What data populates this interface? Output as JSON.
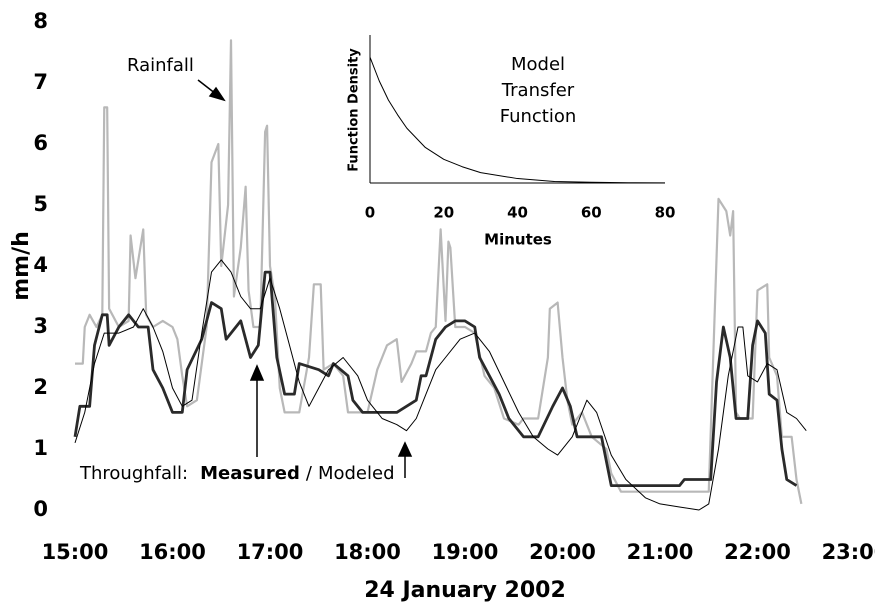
{
  "chart_data": [
    {
      "type": "line",
      "xlabel": "24 January 2002",
      "ylabel": "mm/h",
      "annotation": "Throughfall:",
      "separator": "/",
      "xlim": [
        15,
        23
      ],
      "ylim": [
        0,
        8
      ],
      "xticks": [
        {
          "value": 15,
          "label": "15:00"
        },
        {
          "value": 16,
          "label": "16:00"
        },
        {
          "value": 17,
          "label": "17:00"
        },
        {
          "value": 18,
          "label": "18:00"
        },
        {
          "value": 19,
          "label": "19:00"
        },
        {
          "value": 20,
          "label": "20:00"
        },
        {
          "value": 21,
          "label": "21:00"
        },
        {
          "value": 22,
          "label": "22:00"
        },
        {
          "value": 23,
          "label": "23:00"
        }
      ],
      "yticks": [
        0,
        1,
        2,
        3,
        4,
        5,
        6,
        7,
        8
      ],
      "axis_lines": false,
      "series": [
        {
          "name": "Rainfall",
          "color": "#b8b8b8",
          "width": 2.2,
          "x": [
            15.0,
            15.08,
            15.1,
            15.15,
            15.22,
            15.28,
            15.3,
            15.33,
            15.35,
            15.45,
            15.55,
            15.57,
            15.62,
            15.68,
            15.7,
            15.73,
            15.8,
            15.9,
            16.0,
            16.05,
            16.1,
            16.15,
            16.25,
            16.35,
            16.4,
            16.47,
            16.5,
            16.57,
            16.6,
            16.63,
            16.7,
            16.75,
            16.78,
            16.83,
            16.9,
            16.95,
            16.97,
            17.0,
            17.05,
            17.1,
            17.15,
            17.3,
            17.4,
            17.45,
            17.52,
            17.55,
            17.65,
            17.75,
            17.8,
            18.0,
            18.1,
            18.15,
            18.2,
            18.3,
            18.35,
            18.45,
            18.5,
            18.6,
            18.65,
            18.7,
            18.75,
            18.8,
            18.83,
            18.85,
            18.9,
            19.0,
            19.1,
            19.2,
            19.3,
            19.4,
            19.55,
            19.6,
            19.75,
            19.85,
            19.87,
            19.95,
            20.0,
            20.05,
            20.1,
            20.2,
            20.3,
            20.45,
            20.5,
            20.6,
            21.0,
            21.5,
            21.6,
            21.68,
            21.72,
            21.75,
            21.78,
            21.82,
            21.95,
            22.0,
            22.1,
            22.12,
            22.2,
            22.25,
            22.35,
            22.4,
            22.45
          ],
          "values": [
            2.4,
            2.4,
            3.0,
            3.2,
            3.0,
            3.2,
            6.6,
            6.6,
            3.3,
            3.0,
            3.1,
            4.5,
            3.8,
            4.4,
            4.6,
            3.2,
            3.0,
            3.1,
            3.0,
            2.8,
            2.2,
            1.7,
            1.8,
            3.0,
            5.7,
            6.0,
            4.0,
            5.0,
            7.7,
            3.5,
            4.3,
            5.3,
            3.6,
            3.0,
            3.0,
            6.2,
            6.3,
            4.0,
            3.5,
            2.0,
            1.6,
            1.6,
            2.5,
            3.7,
            3.7,
            2.3,
            2.4,
            2.2,
            1.6,
            1.6,
            2.3,
            2.5,
            2.7,
            2.8,
            2.1,
            2.4,
            2.6,
            2.6,
            2.9,
            3.0,
            4.6,
            3.1,
            4.4,
            4.3,
            3.0,
            3.0,
            2.9,
            2.2,
            2.0,
            1.5,
            1.4,
            1.5,
            1.5,
            2.5,
            3.3,
            3.4,
            2.5,
            1.8,
            1.4,
            1.6,
            1.2,
            1.0,
            0.6,
            0.3,
            0.3,
            0.3,
            5.1,
            4.9,
            4.5,
            4.9,
            1.6,
            1.5,
            1.5,
            3.6,
            3.7,
            2.5,
            2.2,
            1.2,
            1.2,
            0.5,
            0.1
          ]
        },
        {
          "name": "Measured",
          "color": "#2a2a2a",
          "width": 2.8,
          "x": [
            15.0,
            15.05,
            15.15,
            15.2,
            15.28,
            15.33,
            15.35,
            15.45,
            15.55,
            15.65,
            15.75,
            15.8,
            15.9,
            16.0,
            16.1,
            16.15,
            16.3,
            16.4,
            16.5,
            16.55,
            16.7,
            16.8,
            16.88,
            16.95,
            17.0,
            17.07,
            17.15,
            17.25,
            17.3,
            17.5,
            17.6,
            17.65,
            17.8,
            17.85,
            17.95,
            18.1,
            18.3,
            18.4,
            18.5,
            18.55,
            18.6,
            18.65,
            18.7,
            18.8,
            18.9,
            19.0,
            19.1,
            19.15,
            19.25,
            19.35,
            19.45,
            19.6,
            19.75,
            19.9,
            20.0,
            20.08,
            20.15,
            20.3,
            20.4,
            20.45,
            20.5,
            21.0,
            21.2,
            21.25,
            21.4,
            21.52,
            21.58,
            21.65,
            21.72,
            21.78,
            21.9,
            21.95,
            22.0,
            22.08,
            22.12,
            22.2,
            22.25,
            22.3,
            22.4
          ],
          "values": [
            1.2,
            1.7,
            1.7,
            2.7,
            3.2,
            3.2,
            2.7,
            3.0,
            3.2,
            3.0,
            3.0,
            2.3,
            2.0,
            1.6,
            1.6,
            2.3,
            2.8,
            3.4,
            3.3,
            2.8,
            3.1,
            2.5,
            2.7,
            3.9,
            3.9,
            2.5,
            1.9,
            1.9,
            2.4,
            2.3,
            2.2,
            2.4,
            2.2,
            1.8,
            1.6,
            1.6,
            1.6,
            1.7,
            1.8,
            2.2,
            2.2,
            2.5,
            2.8,
            3.0,
            3.1,
            3.1,
            3.0,
            2.5,
            2.2,
            1.9,
            1.5,
            1.2,
            1.2,
            1.7,
            2.0,
            1.7,
            1.2,
            1.2,
            1.2,
            0.8,
            0.4,
            0.4,
            0.4,
            0.5,
            0.5,
            0.5,
            2.1,
            3.0,
            2.5,
            1.5,
            1.5,
            2.7,
            3.1,
            2.9,
            1.9,
            1.8,
            1.0,
            0.5,
            0.4
          ]
        },
        {
          "name": "Modeled",
          "color": "#000000",
          "width": 1,
          "x": [
            15.0,
            15.1,
            15.2,
            15.3,
            15.45,
            15.6,
            15.7,
            15.8,
            15.9,
            16.0,
            16.1,
            16.2,
            16.3,
            16.4,
            16.5,
            16.6,
            16.7,
            16.8,
            16.9,
            17.0,
            17.1,
            17.2,
            17.3,
            17.4,
            17.5,
            17.6,
            17.75,
            17.9,
            18.0,
            18.15,
            18.3,
            18.4,
            18.5,
            18.6,
            18.7,
            18.8,
            18.95,
            19.1,
            19.25,
            19.4,
            19.55,
            19.7,
            19.85,
            19.95,
            20.1,
            20.25,
            20.35,
            20.5,
            20.65,
            20.85,
            21.0,
            21.2,
            21.4,
            21.5,
            21.6,
            21.7,
            21.8,
            21.85,
            21.9,
            22.0,
            22.1,
            22.2,
            22.3,
            22.4,
            22.5
          ],
          "values": [
            1.1,
            1.6,
            2.4,
            2.9,
            2.9,
            3.0,
            3.3,
            3.0,
            2.6,
            2.0,
            1.7,
            1.8,
            2.9,
            3.9,
            4.1,
            3.9,
            3.5,
            3.3,
            3.3,
            3.8,
            3.3,
            2.7,
            2.1,
            1.7,
            2.0,
            2.3,
            2.5,
            2.2,
            1.8,
            1.5,
            1.4,
            1.3,
            1.5,
            1.9,
            2.3,
            2.5,
            2.8,
            2.9,
            2.6,
            2.1,
            1.6,
            1.2,
            1.0,
            0.9,
            1.2,
            1.8,
            1.6,
            0.9,
            0.5,
            0.2,
            0.1,
            0.05,
            0.0,
            0.1,
            1.0,
            2.2,
            3.0,
            3.0,
            2.2,
            2.1,
            2.4,
            2.3,
            1.6,
            1.5,
            1.3
          ]
        }
      ]
    },
    {
      "type": "line",
      "title_lines": [
        "Model",
        "Transfer",
        "Function"
      ],
      "xlabel": "Minutes",
      "ylabel": "Function Density",
      "xlim": [
        0,
        80
      ],
      "ylim": [
        0,
        1
      ],
      "xticks": [
        0,
        20,
        40,
        60,
        80
      ],
      "axis_lines": true,
      "series": [
        {
          "color": "#000000",
          "width": 1,
          "x": [
            0,
            2.5,
            5,
            7.5,
            10,
            15,
            20,
            25,
            30,
            40,
            50,
            60,
            70,
            80
          ],
          "values": [
            0.85,
            0.69,
            0.56,
            0.46,
            0.37,
            0.24,
            0.16,
            0.11,
            0.07,
            0.03,
            0.01,
            0.005,
            0.002,
            0.001
          ]
        }
      ]
    }
  ]
}
